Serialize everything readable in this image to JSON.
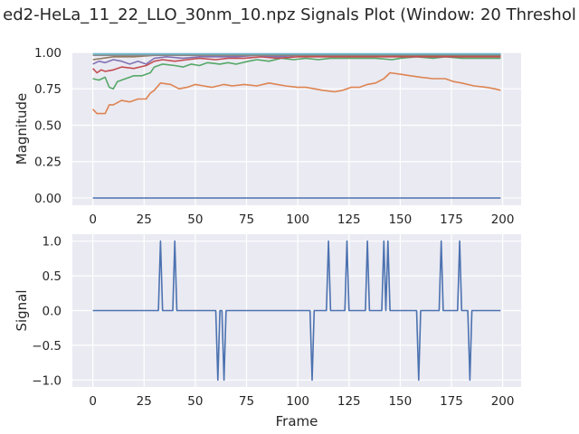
{
  "chart_data": [
    {
      "type": "line",
      "title": "ed2-HeLa_11_22_LLO_30nm_10.npz Signals Plot (Window: 20 Threshol",
      "xlabel": "",
      "ylabel": "Magnitude",
      "xlim": [
        -10,
        209
      ],
      "ylim": [
        -0.05,
        1.0
      ],
      "xticks": [
        "0",
        "25",
        "50",
        "75",
        "100",
        "125",
        "150",
        "175",
        "200"
      ],
      "yticks": [
        "0.00",
        "0.25",
        "0.50",
        "0.75",
        "1.00"
      ],
      "grid": true,
      "legend": "none",
      "series": [
        {
          "color": "#4c72b0",
          "points": [
            [
              0,
              0
            ],
            [
              199,
              0
            ]
          ]
        },
        {
          "color": "#dd8452",
          "points": [
            [
              0,
              0.61
            ],
            [
              2,
              0.58
            ],
            [
              6,
              0.58
            ],
            [
              8,
              0.64
            ],
            [
              10,
              0.64
            ],
            [
              14,
              0.67
            ],
            [
              18,
              0.66
            ],
            [
              22,
              0.68
            ],
            [
              26,
              0.68
            ],
            [
              28,
              0.72
            ],
            [
              30,
              0.74
            ],
            [
              33,
              0.79
            ],
            [
              38,
              0.78
            ],
            [
              42,
              0.75
            ],
            [
              46,
              0.76
            ],
            [
              50,
              0.78
            ],
            [
              54,
              0.77
            ],
            [
              58,
              0.76
            ],
            [
              64,
              0.78
            ],
            [
              68,
              0.77
            ],
            [
              74,
              0.78
            ],
            [
              80,
              0.77
            ],
            [
              86,
              0.79
            ],
            [
              90,
              0.78
            ],
            [
              94,
              0.77
            ],
            [
              100,
              0.76
            ],
            [
              104,
              0.76
            ],
            [
              108,
              0.75
            ],
            [
              112,
              0.74
            ],
            [
              118,
              0.73
            ],
            [
              122,
              0.74
            ],
            [
              126,
              0.76
            ],
            [
              130,
              0.76
            ],
            [
              134,
              0.78
            ],
            [
              138,
              0.79
            ],
            [
              142,
              0.82
            ],
            [
              145,
              0.86
            ],
            [
              150,
              0.85
            ],
            [
              155,
              0.84
            ],
            [
              160,
              0.83
            ],
            [
              166,
              0.82
            ],
            [
              172,
              0.82
            ],
            [
              176,
              0.8
            ],
            [
              180,
              0.79
            ],
            [
              186,
              0.77
            ],
            [
              192,
              0.76
            ],
            [
              196,
              0.75
            ],
            [
              199,
              0.74
            ]
          ]
        },
        {
          "color": "#55a868",
          "points": [
            [
              0,
              0.82
            ],
            [
              3,
              0.81
            ],
            [
              6,
              0.83
            ],
            [
              8,
              0.76
            ],
            [
              10,
              0.75
            ],
            [
              12,
              0.8
            ],
            [
              16,
              0.82
            ],
            [
              20,
              0.84
            ],
            [
              24,
              0.84
            ],
            [
              28,
              0.86
            ],
            [
              30,
              0.9
            ],
            [
              34,
              0.92
            ],
            [
              40,
              0.91
            ],
            [
              44,
              0.9
            ],
            [
              48,
              0.92
            ],
            [
              52,
              0.91
            ],
            [
              56,
              0.93
            ],
            [
              62,
              0.92
            ],
            [
              66,
              0.93
            ],
            [
              70,
              0.92
            ],
            [
              76,
              0.94
            ],
            [
              80,
              0.95
            ],
            [
              86,
              0.94
            ],
            [
              92,
              0.96
            ],
            [
              98,
              0.95
            ],
            [
              104,
              0.96
            ],
            [
              110,
              0.95
            ],
            [
              116,
              0.96
            ],
            [
              122,
              0.96
            ],
            [
              130,
              0.96
            ],
            [
              138,
              0.96
            ],
            [
              146,
              0.95
            ],
            [
              150,
              0.96
            ],
            [
              158,
              0.97
            ],
            [
              166,
              0.96
            ],
            [
              172,
              0.97
            ],
            [
              180,
              0.96
            ],
            [
              190,
              0.96
            ],
            [
              199,
              0.96
            ]
          ]
        },
        {
          "color": "#c44e52",
          "points": [
            [
              0,
              0.89
            ],
            [
              2,
              0.86
            ],
            [
              4,
              0.88
            ],
            [
              6,
              0.87
            ],
            [
              10,
              0.88
            ],
            [
              14,
              0.9
            ],
            [
              20,
              0.89
            ],
            [
              26,
              0.91
            ],
            [
              30,
              0.94
            ],
            [
              34,
              0.95
            ],
            [
              40,
              0.94
            ],
            [
              46,
              0.95
            ],
            [
              52,
              0.96
            ],
            [
              60,
              0.95
            ],
            [
              66,
              0.96
            ],
            [
              74,
              0.96
            ],
            [
              82,
              0.97
            ],
            [
              90,
              0.96
            ],
            [
              100,
              0.97
            ],
            [
              110,
              0.97
            ],
            [
              120,
              0.97
            ],
            [
              130,
              0.97
            ],
            [
              140,
              0.97
            ],
            [
              150,
              0.97
            ],
            [
              160,
              0.97
            ],
            [
              170,
              0.97
            ],
            [
              180,
              0.97
            ],
            [
              190,
              0.97
            ],
            [
              199,
              0.97
            ]
          ]
        },
        {
          "color": "#8172b3",
          "points": [
            [
              0,
              0.92
            ],
            [
              3,
              0.94
            ],
            [
              6,
              0.93
            ],
            [
              10,
              0.95
            ],
            [
              14,
              0.94
            ],
            [
              18,
              0.92
            ],
            [
              22,
              0.94
            ],
            [
              26,
              0.92
            ],
            [
              30,
              0.96
            ],
            [
              36,
              0.97
            ],
            [
              44,
              0.96
            ],
            [
              52,
              0.97
            ],
            [
              60,
              0.97
            ],
            [
              70,
              0.97
            ],
            [
              80,
              0.98
            ],
            [
              90,
              0.97
            ],
            [
              100,
              0.98
            ],
            [
              120,
              0.98
            ],
            [
              140,
              0.98
            ],
            [
              160,
              0.98
            ],
            [
              180,
              0.98
            ],
            [
              199,
              0.98
            ]
          ]
        },
        {
          "color": "#937860",
          "points": [
            [
              0,
              0.95
            ],
            [
              10,
              0.97
            ],
            [
              20,
              0.97
            ],
            [
              30,
              0.98
            ],
            [
              60,
              0.98
            ],
            [
              100,
              0.98
            ],
            [
              150,
              0.98
            ],
            [
              199,
              0.98
            ]
          ]
        },
        {
          "color": "#8c8c8c",
          "points": [
            [
              0,
              0.98
            ],
            [
              199,
              0.985
            ]
          ]
        },
        {
          "color": "#64b5cd",
          "points": [
            [
              0,
              0.99
            ],
            [
              199,
              0.99
            ]
          ]
        }
      ]
    },
    {
      "type": "line",
      "xlabel": "Frame",
      "ylabel": "Signal",
      "xlim": [
        -10,
        209
      ],
      "ylim": [
        -1.1,
        1.1
      ],
      "xticks": [
        "0",
        "25",
        "50",
        "75",
        "100",
        "125",
        "150",
        "175",
        "200"
      ],
      "yticks": [
        "−1.0",
        "−0.5",
        "0.0",
        "0.5",
        "1.0"
      ],
      "grid": true,
      "legend": "none",
      "series": [
        {
          "color": "#4c72b0",
          "points": [
            [
              0,
              0
            ],
            [
              32,
              0
            ],
            [
              33,
              1
            ],
            [
              34,
              0
            ],
            [
              39,
              0
            ],
            [
              40,
              1
            ],
            [
              41,
              0
            ],
            [
              59,
              0
            ],
            [
              60,
              0
            ],
            [
              61,
              -1
            ],
            [
              62,
              0
            ],
            [
              63,
              0
            ],
            [
              64,
              -1
            ],
            [
              65,
              0
            ],
            [
              106,
              0
            ],
            [
              107,
              -1
            ],
            [
              108,
              0
            ],
            [
              114,
              0
            ],
            [
              115,
              1
            ],
            [
              116,
              0
            ],
            [
              123,
              0
            ],
            [
              124,
              1
            ],
            [
              125,
              0
            ],
            [
              133,
              0
            ],
            [
              134,
              1
            ],
            [
              135,
              0
            ],
            [
              141,
              0
            ],
            [
              142,
              1
            ],
            [
              143,
              0
            ],
            [
              144,
              1
            ],
            [
              145,
              0
            ],
            [
              158,
              0
            ],
            [
              159,
              -1
            ],
            [
              160,
              0
            ],
            [
              169,
              0
            ],
            [
              170,
              1
            ],
            [
              171,
              0
            ],
            [
              178,
              0
            ],
            [
              179,
              1
            ],
            [
              180,
              0
            ],
            [
              183,
              0
            ],
            [
              184,
              -1
            ],
            [
              185,
              0
            ],
            [
              199,
              0
            ]
          ]
        }
      ]
    }
  ]
}
